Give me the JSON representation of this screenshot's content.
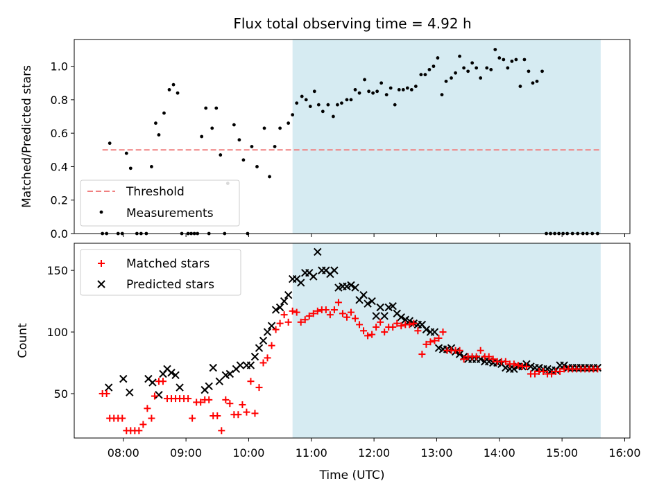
{
  "figure": {
    "title": "Flux total observing time = 4.92 h",
    "xlabel": "Time (UTC)"
  },
  "chart_data": [
    {
      "type": "scatter",
      "ylabel": "Matched/Predicted stars",
      "xlim": [
        "07:13",
        "16:05"
      ],
      "ylim": [
        0,
        1.16
      ],
      "yticks": [
        0.0,
        0.2,
        0.4,
        0.6,
        0.8,
        1.0
      ],
      "ytick_labels": [
        "0.0",
        "0.2",
        "0.4",
        "0.6",
        "0.8",
        "1.0"
      ],
      "grid": false,
      "legend": "lower-left",
      "shaded_span": {
        "x": [
          "10:42",
          "15:37"
        ],
        "color": "#add8e6"
      },
      "threshold": {
        "name": "Threshold",
        "y": 0.5,
        "x": [
          "07:40",
          "15:37"
        ],
        "color": "#f08080"
      },
      "series": [
        {
          "name": "Measurements",
          "color": "#000000",
          "x": [
            "07:40",
            "07:44",
            "07:47",
            "07:55",
            "07:59",
            "08:03",
            "08:07",
            "08:13",
            "08:17",
            "08:22",
            "08:27",
            "08:31",
            "08:34",
            "08:39",
            "08:44",
            "08:48",
            "08:52",
            "08:56",
            "09:02",
            "09:05",
            "09:08",
            "09:11",
            "09:15",
            "09:19",
            "09:22",
            "09:25",
            "09:29",
            "09:33",
            "09:37",
            "09:40",
            "09:46",
            "09:51",
            "09:55",
            "09:59",
            "10:03",
            "10:08",
            "10:15",
            "10:20",
            "10:25",
            "10:30",
            "10:38",
            "10:42",
            "10:46",
            "10:51",
            "10:55",
            "10:59",
            "11:03",
            "11:07",
            "11:11",
            "11:16",
            "11:21",
            "11:25",
            "11:29",
            "11:34",
            "11:38",
            "11:42",
            "11:46",
            "11:51",
            "11:55",
            "11:59",
            "12:03",
            "12:07",
            "12:12",
            "12:16",
            "12:20",
            "12:24",
            "12:28",
            "12:32",
            "12:36",
            "12:40",
            "12:45",
            "12:49",
            "12:53",
            "12:57",
            "13:01",
            "13:05",
            "13:09",
            "13:14",
            "13:18",
            "13:22",
            "13:26",
            "13:30",
            "13:34",
            "13:38",
            "13:42",
            "13:48",
            "13:52",
            "13:56",
            "14:00",
            "14:04",
            "14:08",
            "14:12",
            "14:16",
            "14:20",
            "14:24",
            "14:28",
            "14:32",
            "14:36",
            "14:41",
            "14:45",
            "14:49",
            "14:53",
            "14:57",
            "15:01",
            "15:05",
            "15:10",
            "15:15",
            "15:20",
            "15:24",
            "15:29",
            "15:34"
          ],
          "y": [
            0.0,
            0.0,
            0.54,
            0.0,
            0.0,
            0.48,
            0.39,
            0.0,
            0.0,
            0.0,
            0.4,
            0.66,
            0.59,
            0.72,
            0.86,
            0.89,
            0.84,
            0.0,
            0.0,
            0.0,
            0.0,
            0.0,
            0.58,
            0.75,
            0.0,
            0.63,
            0.75,
            0.47,
            0.0,
            0.3,
            0.65,
            0.56,
            0.44,
            0.0,
            0.52,
            0.4,
            0.63,
            0.34,
            0.52,
            0.63,
            0.66,
            0.71,
            0.78,
            0.82,
            0.8,
            0.76,
            0.85,
            0.77,
            0.73,
            0.77,
            0.7,
            0.77,
            0.78,
            0.8,
            0.8,
            0.86,
            0.84,
            0.92,
            0.85,
            0.84,
            0.85,
            0.9,
            0.83,
            0.87,
            0.77,
            0.86,
            0.86,
            0.87,
            0.86,
            0.88,
            0.95,
            0.95,
            0.98,
            1.0,
            1.05,
            0.83,
            0.91,
            0.93,
            0.96,
            1.06,
            0.99,
            0.97,
            1.02,
            0.99,
            0.93,
            0.99,
            0.98,
            1.1,
            1.05,
            1.04,
            0.99,
            1.03,
            1.04,
            0.88,
            1.04,
            0.97,
            0.9,
            0.91,
            0.97,
            0.0,
            0.0,
            0.0,
            0.0,
            0.0,
            0.0,
            0.0,
            0.0,
            0.0,
            0.0,
            0.0,
            0.0
          ]
        }
      ]
    },
    {
      "type": "scatter",
      "ylabel": "Count",
      "xlim": [
        "07:13",
        "16:05"
      ],
      "ylim": [
        14,
        172
      ],
      "yticks": [
        50,
        100,
        150
      ],
      "ytick_labels": [
        "50",
        "100",
        "150"
      ],
      "xticks": [
        "08:00",
        "09:00",
        "10:00",
        "11:00",
        "12:00",
        "13:00",
        "14:00",
        "15:00",
        "16:00"
      ],
      "grid": false,
      "legend": "upper-left",
      "shaded_span": {
        "x": [
          "10:42",
          "15:37"
        ],
        "color": "#add8e6"
      },
      "series": [
        {
          "name": "Matched stars",
          "marker": "+",
          "color": "#ff0000",
          "x": [
            "07:40",
            "07:44",
            "07:47",
            "07:51",
            "07:55",
            "07:59",
            "08:03",
            "08:07",
            "08:11",
            "08:15",
            "08:19",
            "08:23",
            "08:27",
            "08:30",
            "08:34",
            "08:38",
            "08:42",
            "08:46",
            "08:50",
            "08:54",
            "08:58",
            "09:02",
            "09:06",
            "09:10",
            "09:14",
            "09:18",
            "09:22",
            "09:26",
            "09:30",
            "09:34",
            "09:38",
            "09:42",
            "09:46",
            "09:50",
            "09:54",
            "09:58",
            "10:02",
            "10:06",
            "10:10",
            "10:14",
            "10:18",
            "10:22",
            "10:26",
            "10:30",
            "10:34",
            "10:38",
            "10:42",
            "10:46",
            "10:50",
            "10:54",
            "10:58",
            "11:02",
            "11:06",
            "11:10",
            "11:14",
            "11:18",
            "11:22",
            "11:26",
            "11:30",
            "11:34",
            "11:38",
            "11:42",
            "11:46",
            "11:50",
            "11:54",
            "11:58",
            "12:02",
            "12:06",
            "12:10",
            "12:14",
            "12:18",
            "12:22",
            "12:26",
            "12:30",
            "12:34",
            "12:38",
            "12:42",
            "12:46",
            "12:50",
            "12:54",
            "12:58",
            "13:02",
            "13:06",
            "13:10",
            "13:14",
            "13:18",
            "13:22",
            "13:26",
            "13:30",
            "13:34",
            "13:38",
            "13:42",
            "13:46",
            "13:50",
            "13:54",
            "13:58",
            "14:02",
            "14:06",
            "14:10",
            "14:14",
            "14:18",
            "14:22",
            "14:26",
            "14:30",
            "14:34",
            "14:38",
            "14:42",
            "14:46",
            "14:50",
            "14:54",
            "14:58",
            "15:02",
            "15:06",
            "15:10",
            "15:14",
            "15:18",
            "15:22",
            "15:26",
            "15:30",
            "15:34"
          ],
          "y": [
            50,
            50,
            30,
            30,
            30,
            30,
            20,
            20,
            20,
            20,
            25,
            38,
            30,
            48,
            60,
            60,
            46,
            46,
            46,
            46,
            46,
            46,
            30,
            43,
            43,
            45,
            45,
            32,
            32,
            20,
            45,
            42,
            33,
            33,
            41,
            35,
            60,
            34,
            55,
            75,
            79,
            89,
            102,
            107,
            114,
            108,
            117,
            116,
            108,
            110,
            113,
            115,
            117,
            118,
            118,
            114,
            118,
            124,
            115,
            112,
            116,
            111,
            106,
            101,
            97,
            98,
            104,
            108,
            100,
            104,
            104,
            107,
            105,
            106,
            106,
            107,
            101,
            82,
            90,
            92,
            93,
            95,
            100,
            85,
            85,
            85,
            85,
            78,
            80,
            80,
            80,
            85,
            80,
            80,
            78,
            76,
            76,
            76,
            74,
            74,
            73,
            72,
            72,
            66,
            66,
            68,
            68,
            66,
            66,
            68,
            68,
            70,
            70,
            70,
            70,
            70,
            70,
            70,
            70,
            70
          ]
        },
        {
          "name": "Predicted stars",
          "marker": "x",
          "color": "#000000",
          "x": [
            "07:46",
            "08:00",
            "08:06",
            "08:24",
            "08:28",
            "08:34",
            "08:38",
            "08:42",
            "08:46",
            "08:50",
            "08:54",
            "09:18",
            "09:22",
            "09:26",
            "09:32",
            "09:38",
            "09:42",
            "09:48",
            "09:52",
            "09:58",
            "10:02",
            "10:06",
            "10:10",
            "10:14",
            "10:18",
            "10:22",
            "10:26",
            "10:30",
            "10:34",
            "10:38",
            "10:42",
            "10:46",
            "10:50",
            "10:54",
            "10:58",
            "11:02",
            "11:06",
            "11:10",
            "11:14",
            "11:18",
            "11:22",
            "11:26",
            "11:30",
            "11:34",
            "11:38",
            "11:42",
            "11:46",
            "11:50",
            "11:54",
            "11:58",
            "12:02",
            "12:06",
            "12:10",
            "12:14",
            "12:18",
            "12:22",
            "12:26",
            "12:30",
            "12:34",
            "12:38",
            "12:42",
            "12:46",
            "12:50",
            "12:54",
            "12:58",
            "13:02",
            "13:06",
            "13:10",
            "13:14",
            "13:18",
            "13:22",
            "13:26",
            "13:30",
            "13:34",
            "13:38",
            "13:42",
            "13:46",
            "13:50",
            "13:54",
            "13:58",
            "14:02",
            "14:06",
            "14:10",
            "14:14",
            "14:18",
            "14:22",
            "14:26",
            "14:30",
            "14:34",
            "14:38",
            "14:42",
            "14:46",
            "14:50",
            "14:54",
            "14:58",
            "15:02",
            "15:06",
            "15:10",
            "15:14",
            "15:18",
            "15:22",
            "15:26",
            "15:30",
            "15:34"
          ],
          "y": [
            55,
            62,
            51,
            62,
            59,
            49,
            66,
            70,
            67,
            65,
            55,
            53,
            56,
            71,
            60,
            65,
            66,
            70,
            73,
            73,
            73,
            80,
            87,
            93,
            100,
            105,
            118,
            120,
            125,
            130,
            143,
            143,
            140,
            148,
            148,
            145,
            165,
            150,
            150,
            147,
            150,
            136,
            137,
            137,
            138,
            136,
            126,
            130,
            123,
            125,
            113,
            120,
            113,
            120,
            121,
            115,
            112,
            110,
            109,
            107,
            106,
            106,
            102,
            100,
            100,
            87,
            86,
            86,
            87,
            84,
            82,
            80,
            78,
            78,
            78,
            78,
            76,
            76,
            75,
            75,
            74,
            71,
            70,
            70,
            72,
            72,
            74,
            72,
            71,
            71,
            70,
            70,
            69,
            69,
            73,
            73,
            71,
            71,
            71,
            71,
            71,
            71,
            71,
            71
          ]
        }
      ]
    }
  ]
}
